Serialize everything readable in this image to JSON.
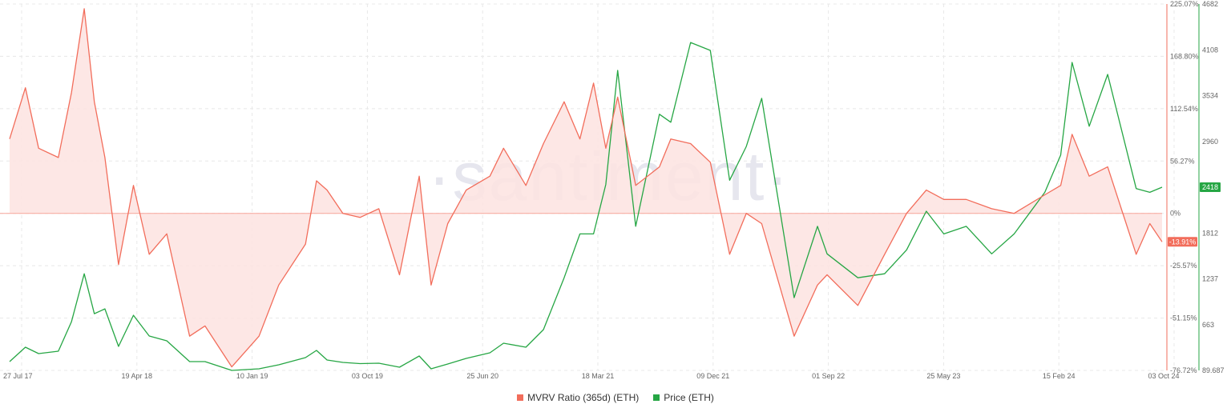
{
  "watermark": "·santiment·",
  "chart_data": {
    "type": "line",
    "legend_position": "bottom-center",
    "grid": true,
    "x_tick_labels": [
      "27 Jul 17",
      "19 Apr 18",
      "10 Jan 19",
      "03 Oct 19",
      "25 Jun 20",
      "18 Mar 21",
      "09 Dec 21",
      "01 Sep 22",
      "25 May 23",
      "15 Feb 24",
      "03 Oct 24"
    ],
    "x_range": [
      "2017-07-27",
      "2024-10-03"
    ],
    "mvrv_axis": {
      "tick_labels": [
        "225.07%",
        "168.80%",
        "112.54%",
        "56.27%",
        "0%",
        "-25.57%",
        "-51.15%",
        "-76.72%"
      ],
      "range": [
        -76.72,
        225.07
      ],
      "unit": "%",
      "current_badge": "-13.91%"
    },
    "price_axis": {
      "tick_labels": [
        "4682",
        "4108",
        "3534",
        "2960",
        "2418",
        "1812",
        "1237",
        "663",
        "89.687"
      ],
      "range": [
        89.687,
        4682
      ],
      "current_badge": "2418"
    },
    "colors": {
      "mvrv": "#f26d5b",
      "mvrv_fill": "#fde3e1",
      "price": "#26a644",
      "grid": "#e8e8e8",
      "zero_line": "#f7a59a"
    },
    "series": [
      {
        "name": "MVRV Ratio (365d) (ETH)",
        "axis": "mvrv",
        "points": [
          [
            "2017-07-27",
            80
          ],
          [
            "2017-09-01",
            135
          ],
          [
            "2017-10-01",
            70
          ],
          [
            "2017-11-15",
            60
          ],
          [
            "2017-12-15",
            130
          ],
          [
            "2018-01-13",
            220
          ],
          [
            "2018-02-05",
            120
          ],
          [
            "2018-03-01",
            60
          ],
          [
            "2018-04-01",
            -25
          ],
          [
            "2018-05-05",
            30
          ],
          [
            "2018-06-10",
            -20
          ],
          [
            "2018-07-20",
            -10
          ],
          [
            "2018-09-10",
            -60
          ],
          [
            "2018-10-15",
            -55
          ],
          [
            "2018-12-15",
            -75
          ],
          [
            "2019-02-15",
            -60
          ],
          [
            "2019-04-01",
            -35
          ],
          [
            "2019-06-01",
            -15
          ],
          [
            "2019-06-26",
            35
          ],
          [
            "2019-07-20",
            25
          ],
          [
            "2019-08-25",
            0
          ],
          [
            "2019-10-03",
            -2
          ],
          [
            "2019-11-15",
            5
          ],
          [
            "2020-01-01",
            -30
          ],
          [
            "2020-02-15",
            40
          ],
          [
            "2020-03-13",
            -35
          ],
          [
            "2020-04-20",
            -5
          ],
          [
            "2020-06-01",
            25
          ],
          [
            "2020-07-25",
            40
          ],
          [
            "2020-08-25",
            70
          ],
          [
            "2020-10-15",
            30
          ],
          [
            "2020-11-24",
            75
          ],
          [
            "2021-01-10",
            120
          ],
          [
            "2021-02-15",
            80
          ],
          [
            "2021-03-18",
            140
          ],
          [
            "2021-04-15",
            70
          ],
          [
            "2021-05-12",
            125
          ],
          [
            "2021-06-22",
            30
          ],
          [
            "2021-08-15",
            50
          ],
          [
            "2021-09-10",
            80
          ],
          [
            "2021-10-25",
            75
          ],
          [
            "2021-12-09",
            55
          ],
          [
            "2022-01-22",
            -20
          ],
          [
            "2022-03-01",
            0
          ],
          [
            "2022-04-05",
            -5
          ],
          [
            "2022-06-18",
            -60
          ],
          [
            "2022-08-10",
            -35
          ],
          [
            "2022-09-01",
            -30
          ],
          [
            "2022-11-10",
            -45
          ],
          [
            "2023-01-10",
            -20
          ],
          [
            "2023-03-01",
            0
          ],
          [
            "2023-04-15",
            25
          ],
          [
            "2023-05-25",
            15
          ],
          [
            "2023-07-15",
            15
          ],
          [
            "2023-09-11",
            5
          ],
          [
            "2023-11-01",
            0
          ],
          [
            "2024-01-10",
            20
          ],
          [
            "2024-02-15",
            30
          ],
          [
            "2024-03-12",
            85
          ],
          [
            "2024-04-20",
            40
          ],
          [
            "2024-06-01",
            50
          ],
          [
            "2024-08-05",
            -20
          ],
          [
            "2024-09-05",
            -5
          ],
          [
            "2024-10-03",
            -13.91
          ]
        ]
      },
      {
        "name": "Price (ETH)",
        "axis": "price",
        "points": [
          [
            "2017-07-27",
            200
          ],
          [
            "2017-09-01",
            380
          ],
          [
            "2017-10-01",
            300
          ],
          [
            "2017-11-15",
            330
          ],
          [
            "2017-12-15",
            700
          ],
          [
            "2018-01-13",
            1300
          ],
          [
            "2018-02-05",
            800
          ],
          [
            "2018-03-01",
            860
          ],
          [
            "2018-04-01",
            390
          ],
          [
            "2018-05-05",
            780
          ],
          [
            "2018-06-10",
            520
          ],
          [
            "2018-07-20",
            460
          ],
          [
            "2018-09-10",
            200
          ],
          [
            "2018-10-15",
            200
          ],
          [
            "2018-12-15",
            85
          ],
          [
            "2019-02-15",
            110
          ],
          [
            "2019-04-01",
            160
          ],
          [
            "2019-06-01",
            250
          ],
          [
            "2019-06-26",
            340
          ],
          [
            "2019-07-20",
            220
          ],
          [
            "2019-08-25",
            190
          ],
          [
            "2019-10-03",
            175
          ],
          [
            "2019-11-15",
            180
          ],
          [
            "2020-01-01",
            130
          ],
          [
            "2020-02-15",
            270
          ],
          [
            "2020-03-13",
            110
          ],
          [
            "2020-04-20",
            170
          ],
          [
            "2020-06-01",
            240
          ],
          [
            "2020-07-25",
            310
          ],
          [
            "2020-08-25",
            430
          ],
          [
            "2020-10-15",
            380
          ],
          [
            "2020-11-24",
            600
          ],
          [
            "2021-01-10",
            1250
          ],
          [
            "2021-02-15",
            1800
          ],
          [
            "2021-03-18",
            1800
          ],
          [
            "2021-04-15",
            2450
          ],
          [
            "2021-05-12",
            3850
          ],
          [
            "2021-06-22",
            1900
          ],
          [
            "2021-08-15",
            3300
          ],
          [
            "2021-09-10",
            3200
          ],
          [
            "2021-10-25",
            4200
          ],
          [
            "2021-12-09",
            4100
          ],
          [
            "2022-01-22",
            2500
          ],
          [
            "2022-03-01",
            2900
          ],
          [
            "2022-04-05",
            3500
          ],
          [
            "2022-06-18",
            1000
          ],
          [
            "2022-08-10",
            1900
          ],
          [
            "2022-09-01",
            1550
          ],
          [
            "2022-11-10",
            1250
          ],
          [
            "2023-01-10",
            1300
          ],
          [
            "2023-03-01",
            1600
          ],
          [
            "2023-04-15",
            2100
          ],
          [
            "2023-05-25",
            1800
          ],
          [
            "2023-07-15",
            1900
          ],
          [
            "2023-09-11",
            1550
          ],
          [
            "2023-11-01",
            1800
          ],
          [
            "2024-01-10",
            2350
          ],
          [
            "2024-02-15",
            2800
          ],
          [
            "2024-03-12",
            3950
          ],
          [
            "2024-04-20",
            3150
          ],
          [
            "2024-06-01",
            3800
          ],
          [
            "2024-08-05",
            2400
          ],
          [
            "2024-09-05",
            2350
          ],
          [
            "2024-10-03",
            2418
          ]
        ]
      }
    ]
  }
}
